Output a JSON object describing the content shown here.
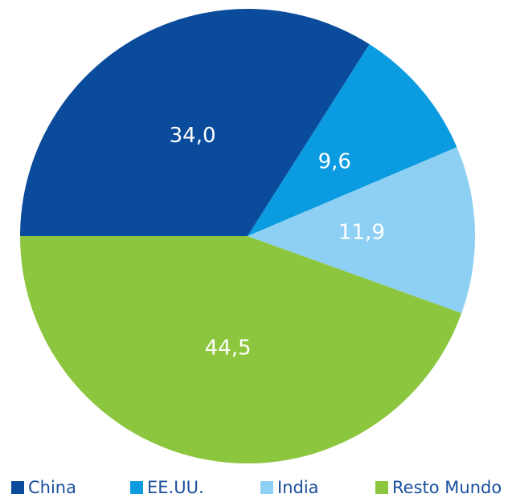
{
  "chart_data": {
    "type": "pie",
    "categories": [
      "China",
      "EE.UU.",
      "India",
      "Resto Mundo"
    ],
    "values": [
      34.0,
      9.6,
      11.9,
      44.5
    ],
    "value_labels": [
      "34,0",
      "9,6",
      "11,9",
      "44,5"
    ],
    "colors": [
      "#0a4b9c",
      "#0a9be0",
      "#8ed0f3",
      "#8cc63f"
    ]
  }
}
